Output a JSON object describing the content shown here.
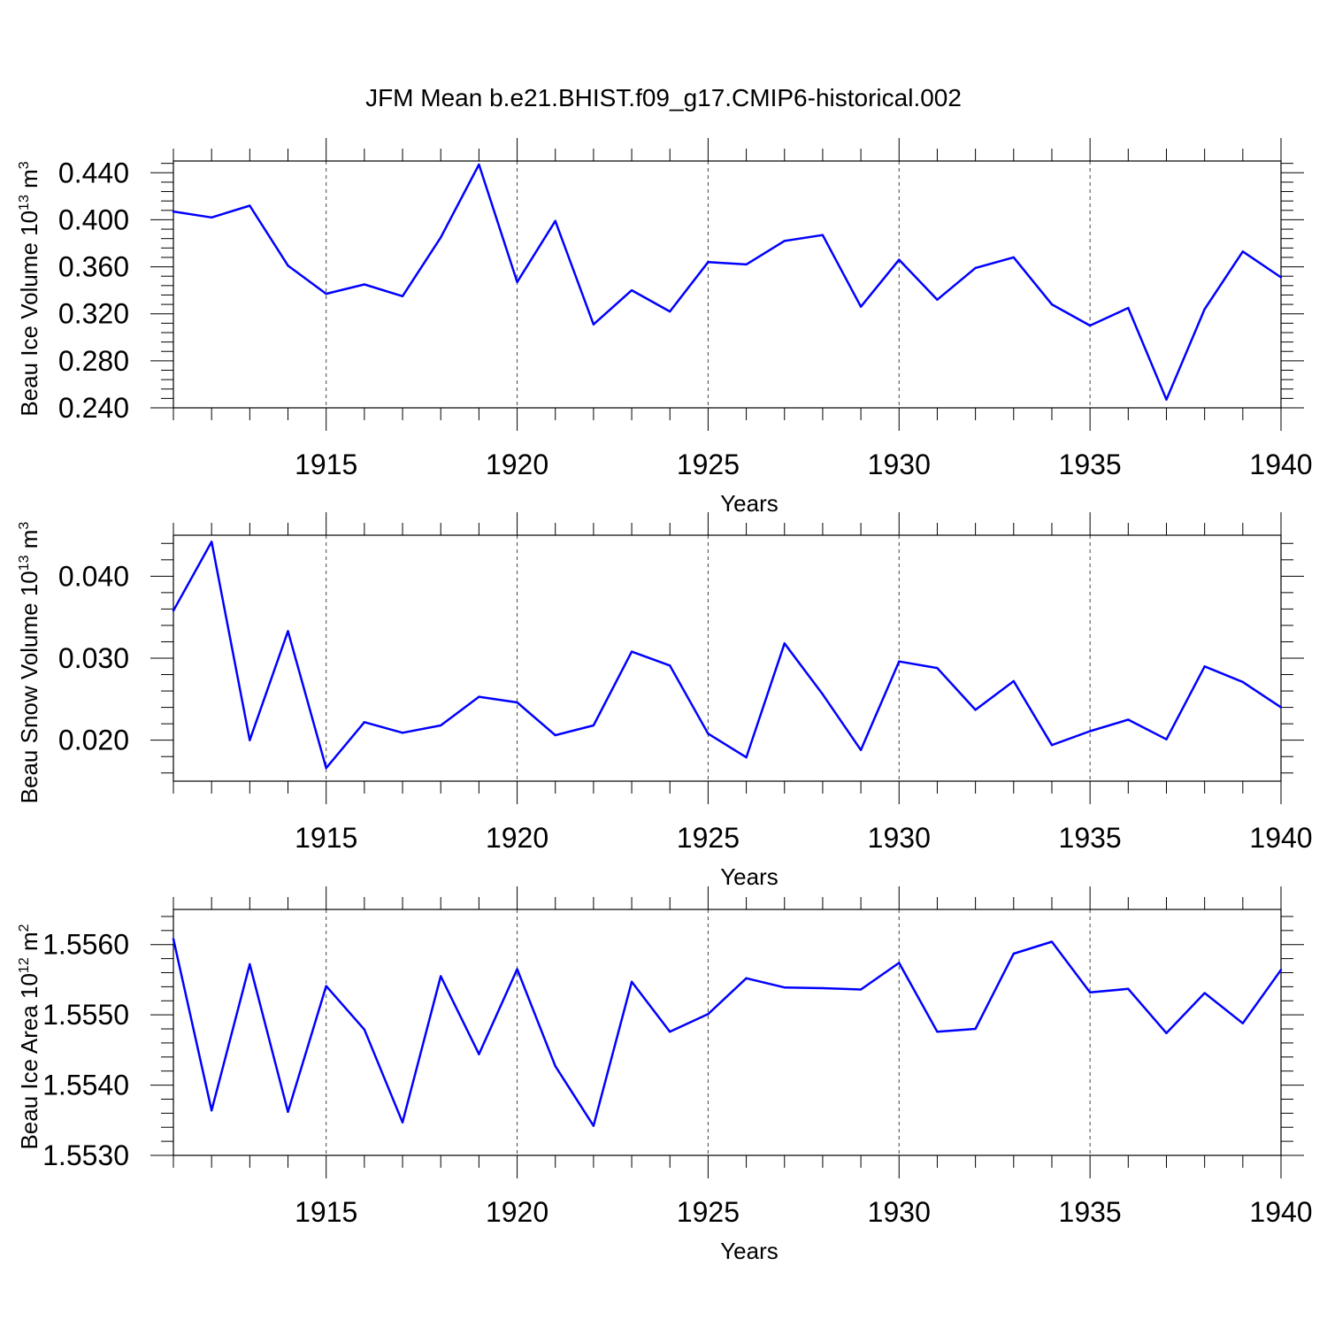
{
  "title": "JFM Mean b.e21.BHIST.f09_g17.CMIP6-historical.002",
  "colors": {
    "line": "#0000ff",
    "frame": "#000000"
  },
  "chart_data": [
    {
      "type": "line",
      "title": "",
      "xlabel": "Years",
      "ylabel": {
        "text": "Beau Ice Volume 10",
        "sup": "13",
        "unit": " m",
        "unit_sup": "3"
      },
      "xlim": [
        1911,
        1940
      ],
      "ylim": [
        0.24,
        0.45
      ],
      "xticks": [
        1915,
        1920,
        1925,
        1930,
        1935,
        1940
      ],
      "xtick_labels": [
        "1915",
        "1920",
        "1925",
        "1930",
        "1935",
        "1940"
      ],
      "yticks": [
        0.24,
        0.28,
        0.32,
        0.36,
        0.4,
        0.44
      ],
      "ytick_labels": [
        "0.240",
        "0.280",
        "0.320",
        "0.360",
        "0.400",
        "0.440"
      ],
      "grid": "vertical dashed at major x ticks",
      "x": [
        1911,
        1912,
        1913,
        1914,
        1915,
        1916,
        1917,
        1918,
        1919,
        1920,
        1921,
        1922,
        1923,
        1924,
        1925,
        1926,
        1927,
        1928,
        1929,
        1930,
        1931,
        1932,
        1933,
        1934,
        1935,
        1936,
        1937,
        1938,
        1939,
        1940
      ],
      "series": [
        {
          "values": [
            0.407,
            0.402,
            0.412,
            0.361,
            0.337,
            0.345,
            0.335,
            0.385,
            0.447,
            0.347,
            0.399,
            0.311,
            0.34,
            0.322,
            0.364,
            0.362,
            0.382,
            0.387,
            0.326,
            0.366,
            0.332,
            0.359,
            0.368,
            0.328,
            0.31,
            0.325,
            0.247,
            0.324,
            0.373,
            0.351
          ]
        }
      ]
    },
    {
      "type": "line",
      "title": "",
      "xlabel": "Years",
      "ylabel": {
        "text": "Beau Snow Volume 10",
        "sup": "13",
        "unit": " m",
        "unit_sup": "3"
      },
      "xlim": [
        1911,
        1940
      ],
      "ylim": [
        0.015,
        0.045
      ],
      "xticks": [
        1915,
        1920,
        1925,
        1930,
        1935,
        1940
      ],
      "xtick_labels": [
        "1915",
        "1920",
        "1925",
        "1930",
        "1935",
        "1940"
      ],
      "yticks": [
        0.02,
        0.03,
        0.04
      ],
      "ytick_labels": [
        "0.020",
        "0.030",
        "0.040"
      ],
      "grid": "vertical dashed at major x ticks",
      "x": [
        1911,
        1912,
        1913,
        1914,
        1915,
        1916,
        1917,
        1918,
        1919,
        1920,
        1921,
        1922,
        1923,
        1924,
        1925,
        1926,
        1927,
        1928,
        1929,
        1930,
        1931,
        1932,
        1933,
        1934,
        1935,
        1936,
        1937,
        1938,
        1939,
        1940
      ],
      "series": [
        {
          "values": [
            0.0358,
            0.0442,
            0.02,
            0.0333,
            0.0166,
            0.0222,
            0.0209,
            0.0218,
            0.0253,
            0.0246,
            0.0206,
            0.0218,
            0.0308,
            0.0291,
            0.0208,
            0.0179,
            0.0318,
            0.0256,
            0.0188,
            0.0296,
            0.0288,
            0.0237,
            0.0272,
            0.0194,
            0.0211,
            0.0225,
            0.0201,
            0.029,
            0.0271,
            0.024
          ]
        }
      ]
    },
    {
      "type": "line",
      "title": "",
      "xlabel": "Years",
      "ylabel": {
        "text": "Beau Ice Area 10",
        "sup": "12",
        "unit": " m",
        "unit_sup": "2"
      },
      "xlim": [
        1911,
        1940
      ],
      "ylim": [
        1.553,
        1.5565
      ],
      "xticks": [
        1915,
        1920,
        1925,
        1930,
        1935,
        1940
      ],
      "xtick_labels": [
        "1915",
        "1920",
        "1925",
        "1930",
        "1935",
        "1940"
      ],
      "yticks": [
        1.553,
        1.554,
        1.555,
        1.556
      ],
      "ytick_labels": [
        "1.5530",
        "1.5540",
        "1.5550",
        "1.5560"
      ],
      "grid": "vertical dashed at major x ticks",
      "x": [
        1911,
        1912,
        1913,
        1914,
        1915,
        1916,
        1917,
        1918,
        1919,
        1920,
        1921,
        1922,
        1923,
        1924,
        1925,
        1926,
        1927,
        1928,
        1929,
        1930,
        1931,
        1932,
        1933,
        1934,
        1935,
        1936,
        1937,
        1938,
        1939,
        1940
      ],
      "series": [
        {
          "values": [
            1.55608,
            1.55364,
            1.55572,
            1.55362,
            1.55541,
            1.55479,
            1.55347,
            1.55555,
            1.55444,
            1.55565,
            1.55427,
            1.55342,
            1.55547,
            1.55476,
            1.55501,
            1.55552,
            1.55539,
            1.55538,
            1.55536,
            1.55574,
            1.55476,
            1.5548,
            1.55587,
            1.55604,
            1.55532,
            1.55537,
            1.55474,
            1.55531,
            1.55488,
            1.55564
          ]
        }
      ]
    }
  ]
}
